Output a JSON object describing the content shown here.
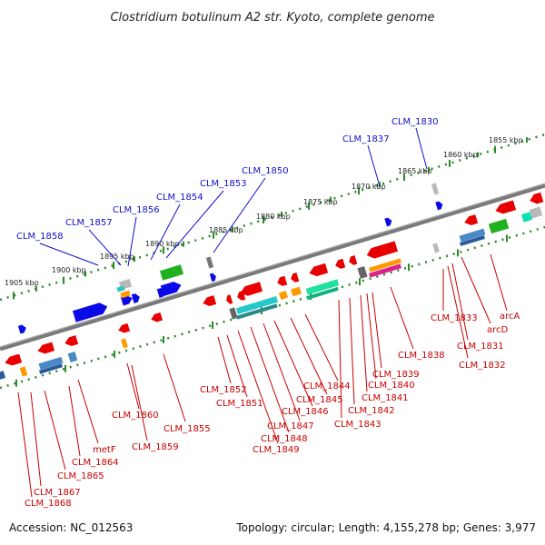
{
  "title": "Clostridium botulinum A2 str. Kyoto, complete genome",
  "accession": "Accession: NC_012563",
  "stats": "Topology: circular; Length: 4,155,278 bp; Genes: 3,977",
  "colors": {
    "backbone": "#7a7a7a",
    "tick_line": "#2a8a2a",
    "label_blue": "#1010c8",
    "label_red": "#c80000"
  },
  "kbp_ticks": [
    {
      "label": "1855 kbp",
      "pos": 1855
    },
    {
      "label": "1860 kbp",
      "pos": 1860
    },
    {
      "label": "1865 kbp",
      "pos": 1865
    },
    {
      "label": "1870 kbp",
      "pos": 1870
    },
    {
      "label": "1875 kbp",
      "pos": 1875
    },
    {
      "label": "1880 kbp",
      "pos": 1880
    },
    {
      "label": "1885 kbp",
      "pos": 1885
    },
    {
      "label": "1890 kbp",
      "pos": 1890
    },
    {
      "label": "1895 kbp",
      "pos": 1895
    },
    {
      "label": "1900 kbp",
      "pos": 1900
    },
    {
      "label": "1905 kbp",
      "pos": 1905
    }
  ],
  "top_labels": [
    {
      "text": "CLM_1830"
    },
    {
      "text": "CLM_1837"
    },
    {
      "text": "CLM_1850"
    },
    {
      "text": "CLM_1853"
    },
    {
      "text": "CLM_1854"
    },
    {
      "text": "CLM_1856"
    },
    {
      "text": "CLM_1857"
    },
    {
      "text": "CLM_1858"
    }
  ],
  "bottom_labels": [
    {
      "text": "CLM_1833"
    },
    {
      "text": "arcA"
    },
    {
      "text": "arcD"
    },
    {
      "text": "CLM_1831"
    },
    {
      "text": "CLM_1832"
    },
    {
      "text": "CLM_1838"
    },
    {
      "text": "CLM_1839"
    },
    {
      "text": "CLM_1840"
    },
    {
      "text": "CLM_1841"
    },
    {
      "text": "CLM_1842"
    },
    {
      "text": "CLM_1843"
    },
    {
      "text": "CLM_1844"
    },
    {
      "text": "CLM_1845"
    },
    {
      "text": "CLM_1846"
    },
    {
      "text": "CLM_1847"
    },
    {
      "text": "CLM_1848"
    },
    {
      "text": "CLM_1849"
    },
    {
      "text": "CLM_1852"
    },
    {
      "text": "CLM_1851"
    },
    {
      "text": "CLM_1855"
    },
    {
      "text": "CLM_1860"
    },
    {
      "text": "CLM_1859"
    },
    {
      "text": "metF"
    },
    {
      "text": "CLM_1864"
    },
    {
      "text": "CLM_1865"
    },
    {
      "text": "CLM_1867"
    },
    {
      "text": "CLM_1868"
    }
  ]
}
